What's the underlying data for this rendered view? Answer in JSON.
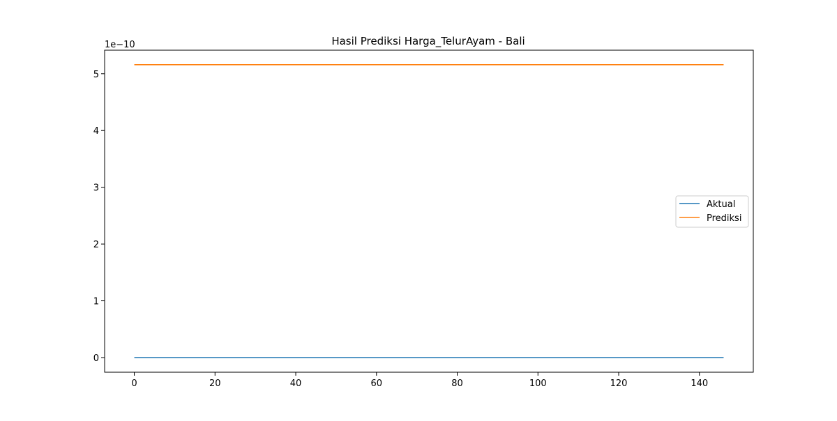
{
  "chart_data": {
    "type": "line",
    "title": "Hasil Prediksi Harga_TelurAyam - Bali",
    "xlabel": "",
    "ylabel": "",
    "offset_label": "1e−10",
    "y_scale_factor": 1e-10,
    "xlim": [
      -7.35,
      153.35
    ],
    "ylim": [
      -2.58e-11,
      5.415e-10
    ],
    "x_ticks": [
      0,
      20,
      40,
      60,
      80,
      100,
      120,
      140
    ],
    "x_tick_labels": [
      "0",
      "20",
      "40",
      "60",
      "80",
      "100",
      "120",
      "140"
    ],
    "y_ticks": [
      0,
      1e-10,
      2e-10,
      3e-10,
      4e-10,
      5e-10
    ],
    "y_tick_labels": [
      "0",
      "1",
      "2",
      "3",
      "4",
      "5"
    ],
    "grid": false,
    "legend_position": "center-right",
    "x": {
      "start": 0,
      "end": 146,
      "step": 1
    },
    "series": [
      {
        "name": "Aktual",
        "color": "#1f77b4",
        "constant_value": 0
      },
      {
        "name": "Prediksi",
        "color": "#ff7f0e",
        "constant_value": 5.16e-10
      }
    ]
  }
}
